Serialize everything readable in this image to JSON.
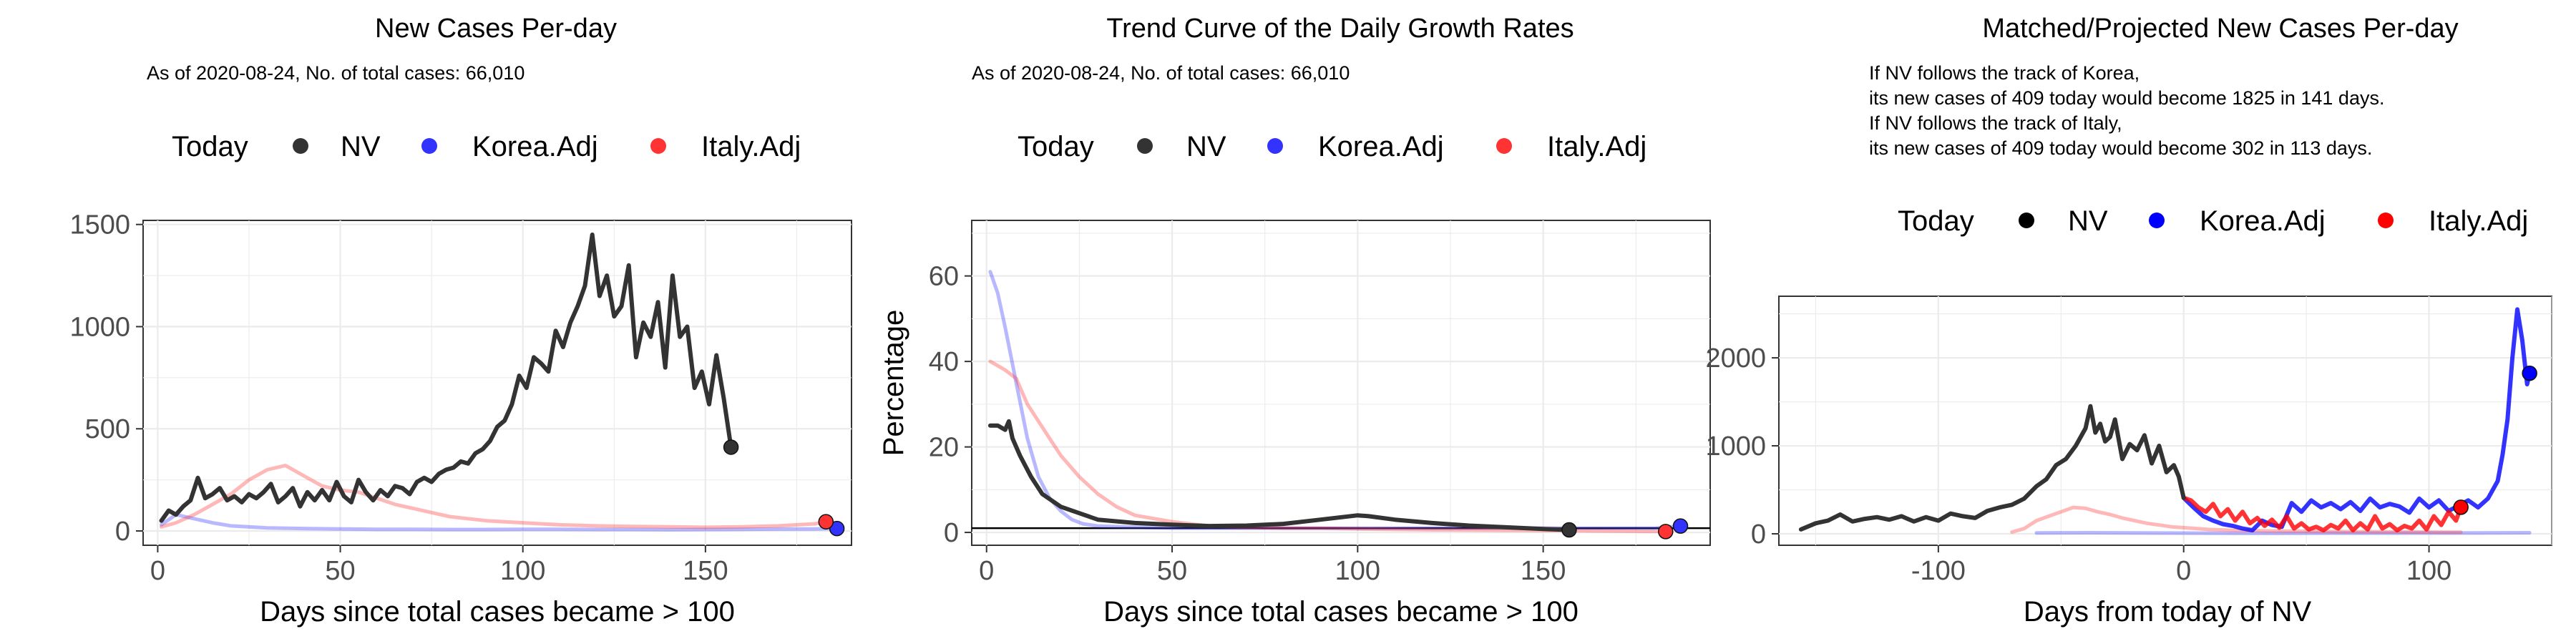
{
  "chart_data": [
    {
      "type": "line",
      "title": "New Cases Per-day",
      "subtitle": "As of 2020-08-24, No. of total cases: 66,010",
      "xlabel": "Days since total cases became > 100",
      "ylabel": "",
      "xlim": [
        -4,
        190
      ],
      "ylim": [
        -70,
        1520
      ],
      "xticks": [
        0,
        50,
        100,
        150
      ],
      "yticks": [
        0,
        500,
        1000,
        1500
      ],
      "xtick_labels": [
        "0",
        "50",
        "100",
        "150"
      ],
      "ytick_labels": [
        "0",
        "500",
        "1000",
        "1500"
      ],
      "grid": true,
      "legend": {
        "placement": "top",
        "title": "Today",
        "entries": [
          {
            "label": "NV",
            "color": "#333333"
          },
          {
            "label": "Korea.Adj",
            "color": "#3333ff"
          },
          {
            "label": "Italy.Adj",
            "color": "#ff3333"
          }
        ]
      },
      "series": [
        {
          "key": "NV",
          "color": "#333333",
          "opacity": 1,
          "today_marker": true,
          "x": [
            1,
            3,
            5,
            7,
            9,
            11,
            13,
            15,
            17,
            19,
            21,
            23,
            25,
            27,
            29,
            31,
            33,
            35,
            37,
            39,
            41,
            43,
            45,
            47,
            49,
            51,
            53,
            55,
            57,
            59,
            61,
            63,
            65,
            67,
            69,
            71,
            73,
            75,
            77,
            79,
            81,
            83,
            85,
            87,
            89,
            91,
            93,
            95,
            97,
            99,
            101,
            103,
            105,
            107,
            109,
            111,
            113,
            115,
            117,
            119,
            121,
            123,
            125,
            127,
            129,
            131,
            133,
            135,
            137,
            139,
            141,
            143,
            145,
            147,
            149,
            151,
            153,
            155,
            157
          ],
          "y": [
            50,
            100,
            80,
            120,
            150,
            260,
            160,
            180,
            210,
            150,
            170,
            140,
            180,
            160,
            190,
            230,
            140,
            170,
            210,
            120,
            190,
            150,
            200,
            150,
            240,
            170,
            140,
            250,
            190,
            150,
            200,
            170,
            220,
            210,
            180,
            240,
            260,
            240,
            280,
            300,
            310,
            340,
            330,
            380,
            400,
            440,
            510,
            540,
            620,
            760,
            700,
            850,
            820,
            780,
            980,
            900,
            1020,
            1100,
            1200,
            1450,
            1150,
            1250,
            1050,
            1100,
            1300,
            850,
            1020,
            950,
            1120,
            800,
            1250,
            950,
            1000,
            700,
            780,
            620,
            860,
            650,
            410
          ]
        },
        {
          "key": "Korea.Adj",
          "color": "#3333ff",
          "opacity": 0.35,
          "today_marker": true,
          "x": [
            1,
            5,
            10,
            15,
            20,
            30,
            40,
            50,
            60,
            70,
            80,
            90,
            100,
            110,
            120,
            130,
            140,
            150,
            160,
            170,
            180,
            186
          ],
          "y": [
            30,
            80,
            60,
            40,
            25,
            15,
            12,
            10,
            8,
            8,
            7,
            7,
            8,
            8,
            7,
            7,
            6,
            7,
            8,
            9,
            10,
            12
          ]
        },
        {
          "key": "Italy.Adj",
          "color": "#ff3333",
          "opacity": 0.35,
          "today_marker": true,
          "x": [
            1,
            5,
            10,
            15,
            20,
            25,
            30,
            35,
            40,
            45,
            50,
            55,
            60,
            65,
            70,
            75,
            80,
            90,
            100,
            110,
            120,
            130,
            140,
            150,
            160,
            170,
            180,
            183
          ],
          "y": [
            20,
            40,
            80,
            130,
            180,
            250,
            300,
            320,
            270,
            220,
            200,
            190,
            160,
            130,
            110,
            90,
            70,
            50,
            40,
            30,
            25,
            22,
            20,
            18,
            20,
            25,
            35,
            45
          ]
        }
      ]
    },
    {
      "type": "line",
      "title": "Trend Curve of the Daily Growth Rates",
      "subtitle": "As of 2020-08-24, No. of total cases: 66,010",
      "xlabel": "Days since total cases became > 100",
      "ylabel": "Percentage",
      "xlim": [
        -4,
        195
      ],
      "ylim": [
        -3,
        73
      ],
      "xticks": [
        0,
        50,
        100,
        150
      ],
      "yticks": [
        0,
        20,
        40,
        60
      ],
      "xtick_labels": [
        "0",
        "50",
        "100",
        "150"
      ],
      "ytick_labels": [
        "0",
        "20",
        "40",
        "60"
      ],
      "grid": true,
      "hline": 1,
      "legend": {
        "placement": "top",
        "title": "Today",
        "entries": [
          {
            "label": "NV",
            "color": "#333333"
          },
          {
            "label": "Korea.Adj",
            "color": "#3333ff"
          },
          {
            "label": "Italy.Adj",
            "color": "#ff3333"
          }
        ]
      },
      "series": [
        {
          "key": "NV",
          "color": "#333333",
          "opacity": 1,
          "today_marker": true,
          "x": [
            1,
            3,
            5,
            6,
            7,
            9,
            12,
            15,
            20,
            25,
            30,
            40,
            50,
            60,
            70,
            80,
            90,
            95,
            100,
            103,
            110,
            120,
            130,
            140,
            150,
            157
          ],
          "y": [
            25,
            25,
            24,
            26,
            22,
            18,
            13,
            9,
            6,
            4.5,
            3,
            2.2,
            1.8,
            1.5,
            1.6,
            2,
            3,
            3.5,
            4,
            3.8,
            3,
            2.2,
            1.6,
            1.2,
            0.8,
            0.6
          ]
        },
        {
          "key": "Korea.Adj",
          "color": "#3333ff",
          "opacity": 0.35,
          "today_marker": true,
          "x": [
            1,
            3,
            5,
            8,
            11,
            14,
            17,
            20,
            23,
            26,
            30,
            40,
            50,
            60,
            80,
            100,
            120,
            140,
            160,
            180,
            187
          ],
          "y": [
            61,
            56,
            48,
            35,
            22,
            13,
            8,
            5,
            3,
            2,
            1.5,
            1.2,
            1,
            1,
            1,
            1,
            1,
            1,
            1,
            1,
            1.5
          ]
        },
        {
          "key": "Italy.Adj",
          "color": "#ff3333",
          "opacity": 0.35,
          "today_marker": true,
          "x": [
            1,
            3,
            5,
            8,
            11,
            14,
            17,
            20,
            25,
            30,
            35,
            40,
            50,
            60,
            70,
            80,
            90,
            100,
            120,
            140,
            160,
            183
          ],
          "y": [
            40,
            39,
            38,
            36,
            30,
            26,
            22,
            18,
            13,
            9,
            6,
            4,
            2.5,
            1.5,
            1.2,
            1,
            1,
            0.8,
            0.6,
            0.5,
            0.4,
            0.2
          ]
        }
      ]
    },
    {
      "type": "line",
      "title": "Matched/Projected New Cases Per-day",
      "annotation_lines": [
        "If NV follows the track of Korea,",
        "its new cases of 409 today would become 1825 in 141 days.",
        "If NV follows the track of Italy,",
        "its new cases of 409 today would become 302 in 113 days."
      ],
      "xlabel": "Days from today of NV",
      "ylabel": "",
      "xlim": [
        -165,
        150
      ],
      "ylim": [
        -130,
        2700
      ],
      "xticks": [
        -100,
        0,
        100
      ],
      "yticks": [
        0,
        1000,
        2000
      ],
      "xtick_labels": [
        "-100",
        "0",
        "100"
      ],
      "ytick_labels": [
        "0",
        "1000",
        "2000"
      ],
      "grid": true,
      "legend": {
        "placement": "top",
        "title": "Today",
        "entries": [
          {
            "label": "NV",
            "color": "#000000"
          },
          {
            "label": "Korea.Adj",
            "color": "#0000ff"
          },
          {
            "label": "Italy.Adj",
            "color": "#ff0000"
          }
        ]
      },
      "series": [
        {
          "key": "NV",
          "color": "#333333",
          "opacity": 1,
          "today_marker": false,
          "x": [
            -156,
            -150,
            -145,
            -140,
            -135,
            -130,
            -125,
            -120,
            -115,
            -110,
            -105,
            -100,
            -95,
            -90,
            -85,
            -80,
            -75,
            -70,
            -65,
            -60,
            -56,
            -52,
            -48,
            -44,
            -40,
            -38,
            -36,
            -34,
            -32,
            -30,
            -28,
            -25,
            -22,
            -19,
            -16,
            -13,
            -10,
            -7,
            -4,
            -2,
            0
          ],
          "y": [
            50,
            120,
            150,
            220,
            140,
            170,
            190,
            160,
            200,
            140,
            190,
            150,
            230,
            200,
            180,
            260,
            300,
            330,
            400,
            540,
            620,
            780,
            850,
            1000,
            1200,
            1450,
            1150,
            1250,
            1050,
            1100,
            1300,
            850,
            1020,
            950,
            1120,
            800,
            1000,
            700,
            780,
            650,
            409
          ]
        },
        {
          "key": "Korea.Adj (track)",
          "color": "#3333ff",
          "opacity": 0.35,
          "today_marker": false,
          "x": [
            -60,
            -40,
            -20,
            0,
            20,
            40,
            60,
            80,
            100,
            120,
            141
          ],
          "y": [
            10,
            12,
            10,
            8,
            7,
            7,
            8,
            8,
            9,
            10,
            12
          ]
        },
        {
          "key": "Italy.Adj (track)",
          "color": "#ff3333",
          "opacity": 0.35,
          "today_marker": false,
          "x": [
            -70,
            -65,
            -60,
            -55,
            -50,
            -45,
            -40,
            -35,
            -30,
            -25,
            -20,
            -15,
            -10,
            -5,
            0,
            10,
            20,
            40,
            60,
            80,
            100,
            113
          ],
          "y": [
            20,
            60,
            150,
            200,
            250,
            300,
            290,
            250,
            220,
            180,
            150,
            120,
            100,
            80,
            70,
            50,
            40,
            30,
            25,
            22,
            20,
            18
          ]
        },
        {
          "key": "Korea.Adj (projected)",
          "color": "#0000ff",
          "opacity": 0.8,
          "today_marker": true,
          "x": [
            0,
            4,
            8,
            12,
            16,
            20,
            24,
            28,
            32,
            36,
            40,
            44,
            48,
            52,
            56,
            60,
            64,
            68,
            72,
            76,
            80,
            84,
            88,
            92,
            96,
            100,
            104,
            108,
            112,
            116,
            120,
            124,
            128,
            130,
            132,
            134,
            136,
            138,
            140,
            141
          ],
          "y": [
            409,
            300,
            200,
            150,
            110,
            90,
            60,
            40,
            150,
            100,
            80,
            350,
            250,
            380,
            300,
            350,
            280,
            360,
            260,
            400,
            300,
            340,
            310,
            240,
            400,
            300,
            380,
            260,
            320,
            380,
            300,
            400,
            600,
            900,
            1300,
            2000,
            2550,
            2200,
            1700,
            1825
          ]
        },
        {
          "key": "Italy.Adj (projected)",
          "color": "#ff0000",
          "opacity": 0.8,
          "today_marker": true,
          "x": [
            0,
            3,
            6,
            9,
            12,
            15,
            18,
            21,
            24,
            27,
            30,
            33,
            36,
            39,
            42,
            45,
            48,
            51,
            54,
            57,
            60,
            63,
            66,
            69,
            72,
            75,
            78,
            81,
            84,
            87,
            90,
            93,
            96,
            99,
            102,
            105,
            108,
            111,
            113
          ],
          "y": [
            409,
            380,
            300,
            250,
            340,
            200,
            280,
            150,
            250,
            120,
            180,
            90,
            160,
            70,
            200,
            60,
            120,
            50,
            80,
            40,
            100,
            60,
            150,
            40,
            120,
            50,
            200,
            60,
            110,
            40,
            90,
            60,
            150,
            50,
            200,
            100,
            250,
            150,
            302
          ]
        }
      ]
    }
  ]
}
